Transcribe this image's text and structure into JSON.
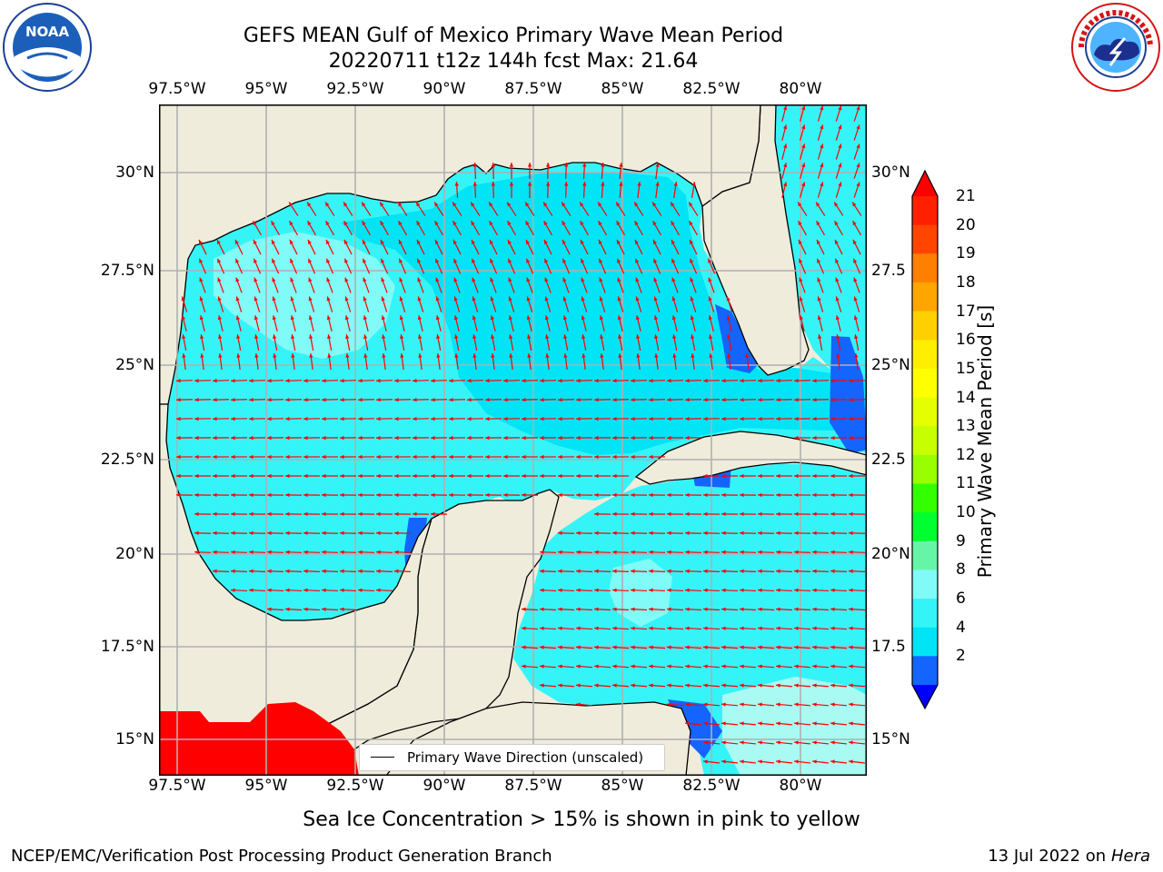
{
  "title": "GEFS MEAN Gulf of Mexico Primary Wave Mean Period",
  "subtitle": "20220711 t12z 144h fcst   Max: 21.64",
  "logos": {
    "noaa_text": "NOAA",
    "noaa_ring_text": "NATIONAL OCEANIC AND ATMOSPHERIC ADMINISTRATION · U.S. DEPARTMENT OF COMMERCE",
    "nws_ring_text": "NATIONAL WEATHER SERVICE"
  },
  "map": {
    "lon_ticks": [
      "97.5°W",
      "95°W",
      "92.5°W",
      "90°W",
      "87.5°W",
      "85°W",
      "82.5°W",
      "80°W"
    ],
    "lat_ticks_left": [
      "30°N",
      "27.5°N",
      "25°N",
      "22.5°N",
      "20°N",
      "17.5°N",
      "15°N"
    ],
    "lat_ticks_right": [
      "30°N",
      "27.5",
      "25°N",
      "22.5",
      "20°N",
      "17.5",
      "15°N"
    ],
    "colors": {
      "land": "#efecdc",
      "ocean_dark": "#00e4f5",
      "ocean_mid": "#35f4f7",
      "ocean_light": "#80fbf7",
      "ocean_pale": "#a8faf3",
      "blue_shallow": "#1464ff",
      "red_land": "#ff0000",
      "arrow": "#ff0000",
      "grid": "#b0b0b0"
    },
    "legend_label": "Primary Wave Direction (unscaled)"
  },
  "colorbar": {
    "label": "Primary Wave Mean Period [s]",
    "ticks": [
      "21",
      "20",
      "19",
      "18",
      "17",
      "16",
      "15",
      "14",
      "13",
      "12",
      "11",
      "10",
      "9",
      "8",
      "6",
      "4",
      "2"
    ],
    "colors": [
      "#ff2000",
      "#ff4500",
      "#ff7f00",
      "#ffa500",
      "#ffd000",
      "#ffee00",
      "#ffff00",
      "#e6ff00",
      "#c8ff00",
      "#99ff00",
      "#33ff00",
      "#00ff30",
      "#66f5a6",
      "#80fbf7",
      "#35f4f7",
      "#00e4f5",
      "#1464ff"
    ],
    "under_color": "#0000ff",
    "over_color": "#ff0000"
  },
  "caption": "Sea Ice Concentration > 15% is shown in pink to yellow",
  "footer_left": "NCEP/EMC/Verification Post Processing Product Generation Branch",
  "footer_right_prefix": "13 Jul 2022 on ",
  "footer_right_host": "Hera"
}
